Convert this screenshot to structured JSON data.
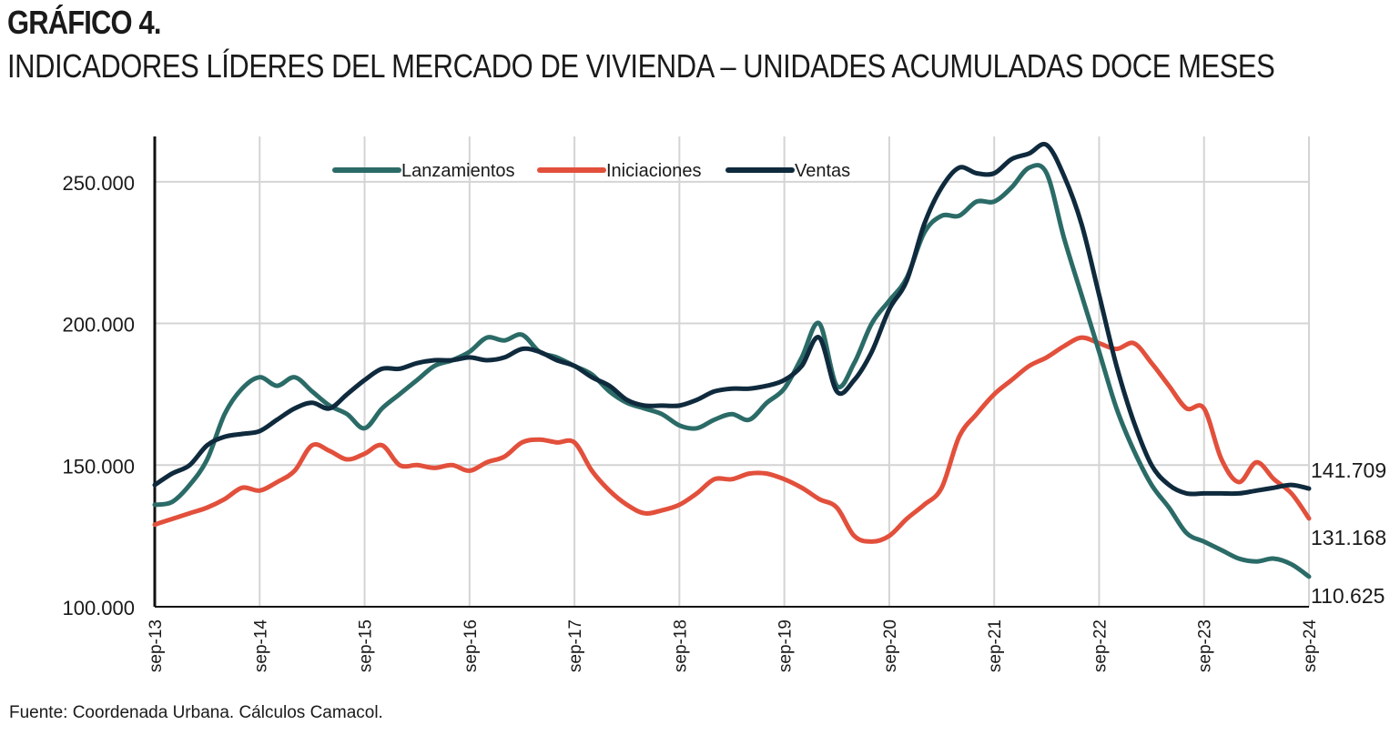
{
  "header": {
    "title": "GRÁFICO 4.",
    "subtitle": "INDICADORES LÍDERES DEL MERCADO DE VIVIENDA – UNIDADES ACUMULADAS DOCE MESES"
  },
  "footer": {
    "source": "Fuente: Coordenada Urbana. Cálculos Camacol."
  },
  "chart_data": {
    "type": "line",
    "title": "",
    "xlabel": "",
    "ylabel": "",
    "ylim": [
      100000,
      265000
    ],
    "yticks": [
      100000,
      150000,
      200000,
      250000
    ],
    "ytick_labels": [
      "100.000",
      "150.000",
      "200.000",
      "250.000"
    ],
    "xticks": [
      2013.667,
      2014.667,
      2015.667,
      2016.667,
      2017.667,
      2018.667,
      2019.667,
      2020.667,
      2021.667,
      2022.667,
      2023.667,
      2024.667
    ],
    "xtick_labels": [
      "sep-13",
      "sep-14",
      "sep-15",
      "sep-16",
      "sep-17",
      "sep-18",
      "sep-19",
      "sep-20",
      "sep-21",
      "sep-22",
      "sep-23",
      "sep-24"
    ],
    "xlim": [
      2013.667,
      2024.667
    ],
    "grid": true,
    "legend_position": "top-center",
    "colors": {
      "Lanzamientos": "#2b6b67",
      "Iniciaciones": "#e2503c",
      "Ventas": "#0f2a3d"
    },
    "series": [
      {
        "name": "Lanzamientos",
        "end_label": "110.625",
        "points": [
          [
            2013.667,
            136000
          ],
          [
            2013.833,
            137000
          ],
          [
            2014.0,
            143000
          ],
          [
            2014.167,
            152000
          ],
          [
            2014.333,
            168000
          ],
          [
            2014.5,
            177000
          ],
          [
            2014.667,
            181000
          ],
          [
            2014.833,
            178000
          ],
          [
            2015.0,
            181000
          ],
          [
            2015.167,
            176000
          ],
          [
            2015.333,
            171000
          ],
          [
            2015.5,
            168000
          ],
          [
            2015.667,
            163000
          ],
          [
            2015.833,
            170000
          ],
          [
            2016.0,
            175000
          ],
          [
            2016.167,
            180000
          ],
          [
            2016.333,
            185000
          ],
          [
            2016.5,
            187000
          ],
          [
            2016.667,
            190000
          ],
          [
            2016.833,
            195000
          ],
          [
            2017.0,
            194000
          ],
          [
            2017.167,
            196000
          ],
          [
            2017.333,
            190000
          ],
          [
            2017.5,
            188000
          ],
          [
            2017.667,
            185000
          ],
          [
            2017.833,
            182000
          ],
          [
            2018.0,
            176000
          ],
          [
            2018.167,
            172000
          ],
          [
            2018.333,
            170000
          ],
          [
            2018.5,
            168000
          ],
          [
            2018.667,
            164000
          ],
          [
            2018.833,
            163000
          ],
          [
            2019.0,
            166000
          ],
          [
            2019.167,
            168000
          ],
          [
            2019.333,
            166000
          ],
          [
            2019.5,
            172000
          ],
          [
            2019.667,
            177000
          ],
          [
            2019.833,
            188000
          ],
          [
            2020.0,
            200000
          ],
          [
            2020.167,
            178000
          ],
          [
            2020.333,
            186000
          ],
          [
            2020.5,
            200000
          ],
          [
            2020.667,
            208000
          ],
          [
            2020.833,
            216000
          ],
          [
            2021.0,
            232000
          ],
          [
            2021.167,
            238000
          ],
          [
            2021.333,
            238000
          ],
          [
            2021.5,
            243000
          ],
          [
            2021.667,
            243000
          ],
          [
            2021.833,
            248000
          ],
          [
            2022.0,
            255000
          ],
          [
            2022.167,
            253000
          ],
          [
            2022.333,
            230000
          ],
          [
            2022.5,
            210000
          ],
          [
            2022.667,
            190000
          ],
          [
            2022.833,
            170000
          ],
          [
            2023.0,
            155000
          ],
          [
            2023.167,
            143000
          ],
          [
            2023.333,
            135000
          ],
          [
            2023.5,
            126000
          ],
          [
            2023.667,
            123000
          ],
          [
            2023.833,
            120000
          ],
          [
            2024.0,
            117000
          ],
          [
            2024.167,
            116000
          ],
          [
            2024.333,
            117000
          ],
          [
            2024.5,
            115000
          ],
          [
            2024.667,
            110625
          ]
        ]
      },
      {
        "name": "Iniciaciones",
        "end_label": "131.168",
        "points": [
          [
            2013.667,
            129000
          ],
          [
            2013.833,
            131000
          ],
          [
            2014.0,
            133000
          ],
          [
            2014.167,
            135000
          ],
          [
            2014.333,
            138000
          ],
          [
            2014.5,
            142000
          ],
          [
            2014.667,
            141000
          ],
          [
            2014.833,
            144000
          ],
          [
            2015.0,
            148000
          ],
          [
            2015.167,
            157000
          ],
          [
            2015.333,
            155000
          ],
          [
            2015.5,
            152000
          ],
          [
            2015.667,
            154000
          ],
          [
            2015.833,
            157000
          ],
          [
            2016.0,
            150000
          ],
          [
            2016.167,
            150000
          ],
          [
            2016.333,
            149000
          ],
          [
            2016.5,
            150000
          ],
          [
            2016.667,
            148000
          ],
          [
            2016.833,
            151000
          ],
          [
            2017.0,
            153000
          ],
          [
            2017.167,
            158000
          ],
          [
            2017.333,
            159000
          ],
          [
            2017.5,
            158000
          ],
          [
            2017.667,
            158000
          ],
          [
            2017.833,
            148000
          ],
          [
            2018.0,
            141000
          ],
          [
            2018.167,
            136000
          ],
          [
            2018.333,
            133000
          ],
          [
            2018.5,
            134000
          ],
          [
            2018.667,
            136000
          ],
          [
            2018.833,
            140000
          ],
          [
            2019.0,
            145000
          ],
          [
            2019.167,
            145000
          ],
          [
            2019.333,
            147000
          ],
          [
            2019.5,
            147000
          ],
          [
            2019.667,
            145000
          ],
          [
            2019.833,
            142000
          ],
          [
            2020.0,
            138000
          ],
          [
            2020.167,
            135000
          ],
          [
            2020.333,
            125000
          ],
          [
            2020.5,
            123000
          ],
          [
            2020.667,
            125000
          ],
          [
            2020.833,
            131000
          ],
          [
            2021.0,
            136000
          ],
          [
            2021.167,
            142000
          ],
          [
            2021.333,
            160000
          ],
          [
            2021.5,
            168000
          ],
          [
            2021.667,
            175000
          ],
          [
            2021.833,
            180000
          ],
          [
            2022.0,
            185000
          ],
          [
            2022.167,
            188000
          ],
          [
            2022.333,
            192000
          ],
          [
            2022.5,
            195000
          ],
          [
            2022.667,
            193000
          ],
          [
            2022.833,
            191000
          ],
          [
            2023.0,
            193000
          ],
          [
            2023.167,
            186000
          ],
          [
            2023.333,
            178000
          ],
          [
            2023.5,
            170000
          ],
          [
            2023.667,
            170000
          ],
          [
            2023.833,
            152000
          ],
          [
            2024.0,
            144000
          ],
          [
            2024.167,
            151000
          ],
          [
            2024.333,
            145000
          ],
          [
            2024.5,
            140000
          ],
          [
            2024.667,
            131168
          ]
        ]
      },
      {
        "name": "Ventas",
        "end_label": "141.709",
        "points": [
          [
            2013.667,
            143000
          ],
          [
            2013.833,
            147000
          ],
          [
            2014.0,
            150000
          ],
          [
            2014.167,
            157000
          ],
          [
            2014.333,
            160000
          ],
          [
            2014.5,
            161000
          ],
          [
            2014.667,
            162000
          ],
          [
            2014.833,
            166000
          ],
          [
            2015.0,
            170000
          ],
          [
            2015.167,
            172000
          ],
          [
            2015.333,
            170000
          ],
          [
            2015.5,
            175000
          ],
          [
            2015.667,
            180000
          ],
          [
            2015.833,
            184000
          ],
          [
            2016.0,
            184000
          ],
          [
            2016.167,
            186000
          ],
          [
            2016.333,
            187000
          ],
          [
            2016.5,
            187000
          ],
          [
            2016.667,
            188000
          ],
          [
            2016.833,
            187000
          ],
          [
            2017.0,
            188000
          ],
          [
            2017.167,
            191000
          ],
          [
            2017.333,
            190000
          ],
          [
            2017.5,
            187000
          ],
          [
            2017.667,
            185000
          ],
          [
            2017.833,
            181000
          ],
          [
            2018.0,
            178000
          ],
          [
            2018.167,
            173000
          ],
          [
            2018.333,
            171000
          ],
          [
            2018.5,
            171000
          ],
          [
            2018.667,
            171000
          ],
          [
            2018.833,
            173000
          ],
          [
            2019.0,
            176000
          ],
          [
            2019.167,
            177000
          ],
          [
            2019.333,
            177000
          ],
          [
            2019.5,
            178000
          ],
          [
            2019.667,
            180000
          ],
          [
            2019.833,
            185000
          ],
          [
            2020.0,
            195000
          ],
          [
            2020.167,
            176000
          ],
          [
            2020.333,
            180000
          ],
          [
            2020.5,
            190000
          ],
          [
            2020.667,
            205000
          ],
          [
            2020.833,
            215000
          ],
          [
            2021.0,
            235000
          ],
          [
            2021.167,
            248000
          ],
          [
            2021.333,
            255000
          ],
          [
            2021.5,
            253000
          ],
          [
            2021.667,
            253000
          ],
          [
            2021.833,
            258000
          ],
          [
            2022.0,
            260000
          ],
          [
            2022.167,
            263000
          ],
          [
            2022.333,
            252000
          ],
          [
            2022.5,
            235000
          ],
          [
            2022.667,
            210000
          ],
          [
            2022.833,
            185000
          ],
          [
            2023.0,
            165000
          ],
          [
            2023.167,
            150000
          ],
          [
            2023.333,
            143000
          ],
          [
            2023.5,
            140000
          ],
          [
            2023.667,
            140000
          ],
          [
            2023.833,
            140000
          ],
          [
            2024.0,
            140000
          ],
          [
            2024.167,
            141000
          ],
          [
            2024.333,
            142000
          ],
          [
            2024.5,
            143000
          ],
          [
            2024.667,
            141709
          ]
        ]
      }
    ]
  }
}
